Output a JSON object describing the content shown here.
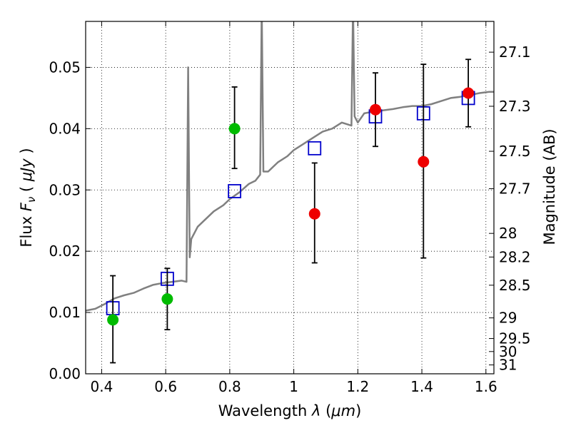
{
  "chart_data": {
    "type": "scatter",
    "title": "",
    "xlabel": "Wavelength",
    "xlabel_symbol": "λ",
    "xlabel_unit": "μm",
    "ylabel": "Flux",
    "ylabel_symbol": "F",
    "ylabel_subscript": "ν",
    "ylabel_unit": "μJy",
    "y2label": "Magnitude (AB)",
    "xlim": [
      0.35,
      1.625
    ],
    "ylim": [
      0.0,
      0.0575
    ],
    "x_ticks": [
      0.4,
      0.6,
      0.8,
      1.0,
      1.2,
      1.4,
      1.6
    ],
    "x_tick_labels": [
      "0.4",
      "0.6",
      "0.8",
      "1",
      "1.2",
      "1.4",
      "1.6"
    ],
    "y_ticks": [
      0.0,
      0.01,
      0.02,
      0.03,
      0.04,
      0.05
    ],
    "y_tick_labels": [
      "0.00",
      "0.01",
      "0.02",
      "0.03",
      "0.04",
      "0.05"
    ],
    "y2_ticks": [
      "27.1",
      "27.3",
      "27.5",
      "27.7",
      "28",
      "28.2",
      "28.5",
      "29",
      "29.5",
      "30",
      "31"
    ],
    "grid": true,
    "colors": {
      "spectrum": "#808080",
      "model_box": "#0000cc",
      "green_points": "#00bb00",
      "red_points": "#ee0000",
      "errorbar": "#000000"
    },
    "spectrum": {
      "x": [
        0.35,
        0.38,
        0.41,
        0.44,
        0.47,
        0.5,
        0.53,
        0.56,
        0.59,
        0.62,
        0.65,
        0.665,
        0.67,
        0.675,
        0.68,
        0.69,
        0.7,
        0.72,
        0.75,
        0.78,
        0.8,
        0.83,
        0.86,
        0.88,
        0.895,
        0.9,
        0.905,
        0.92,
        0.95,
        0.98,
        1.0,
        1.03,
        1.06,
        1.09,
        1.12,
        1.15,
        1.18,
        1.185,
        1.19,
        1.2,
        1.22,
        1.25,
        1.28,
        1.31,
        1.34,
        1.37,
        1.4,
        1.43,
        1.46,
        1.49,
        1.52,
        1.55,
        1.58,
        1.61,
        1.625
      ],
      "y": [
        0.0103,
        0.0106,
        0.0114,
        0.0123,
        0.0128,
        0.0132,
        0.0139,
        0.0145,
        0.0148,
        0.015,
        0.0152,
        0.015,
        0.05,
        0.019,
        0.022,
        0.023,
        0.024,
        0.025,
        0.0265,
        0.0275,
        0.0285,
        0.0296,
        0.031,
        0.0315,
        0.0325,
        0.06,
        0.033,
        0.033,
        0.0345,
        0.0355,
        0.0365,
        0.0375,
        0.0385,
        0.0395,
        0.04,
        0.041,
        0.0405,
        0.06,
        0.042,
        0.041,
        0.0425,
        0.0428,
        0.043,
        0.0432,
        0.0435,
        0.0437,
        0.0437,
        0.044,
        0.0445,
        0.045,
        0.0452,
        0.0455,
        0.0458,
        0.046,
        0.046
      ]
    },
    "model_points": {
      "x": [
        0.435,
        0.605,
        0.815,
        1.065,
        1.255,
        1.405,
        1.545
      ],
      "y": [
        0.0107,
        0.0155,
        0.0298,
        0.0368,
        0.042,
        0.0425,
        0.045
      ]
    },
    "observed_green": {
      "x": [
        0.435,
        0.605,
        0.815
      ],
      "y": [
        0.0088,
        0.0122,
        0.04
      ],
      "err_low": [
        0.007,
        0.005,
        0.0065
      ],
      "err_high": [
        0.0072,
        0.005,
        0.0068
      ]
    },
    "observed_red": {
      "x": [
        1.065,
        1.255,
        1.405,
        1.545
      ],
      "y": [
        0.0261,
        0.0431,
        0.0346,
        0.0458
      ],
      "err_low": [
        0.008,
        0.006,
        0.0157,
        0.0055
      ],
      "err_high": [
        0.0083,
        0.006,
        0.0159,
        0.0055
      ]
    }
  }
}
